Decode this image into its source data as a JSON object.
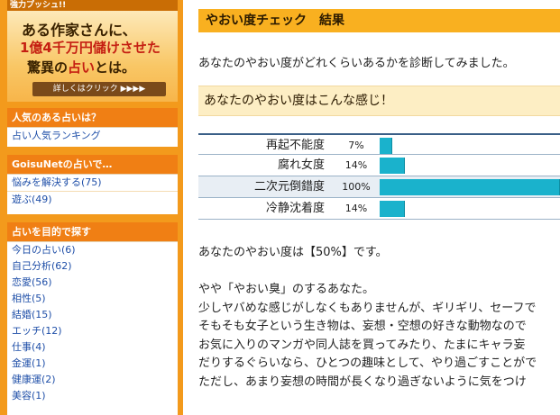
{
  "ad": {
    "header": "強力プッシュ!!",
    "line1": "ある作家さんに、",
    "line2": "1億4千万円儲けさせた",
    "line3_prefix": "驚異の",
    "line3_red": "占い",
    "line3_suffix": "とは。",
    "button": "詳しくはクリック ▶▶▶▶"
  },
  "sidebar": {
    "ranking": {
      "title": "人気のある占いは？",
      "items": [
        "占い人気ランキング"
      ]
    },
    "goisu": {
      "title": "GoisuNetの占いで…",
      "items": [
        "悩みを解決する(75)",
        "遊ぶ(49)"
      ]
    },
    "purpose": {
      "title": "占いを目的で探す",
      "items": [
        "今日の占い(6)",
        "自己分析(62)",
        "恋愛(56)",
        "相性(5)",
        "結婚(15)",
        "エッチ(12)",
        "仕事(4)",
        "金運(1)",
        "健康運(2)",
        "美容(1)"
      ]
    }
  },
  "main": {
    "header": "やおい度チェック　結果",
    "intro": "あなたのやおい度がどれくらいあるかを診断してみました。",
    "subtitle": "あなたのやおい度はこんな感じ！",
    "scores": [
      {
        "label": "再起不能度",
        "pct_text": "7%",
        "value": 7
      },
      {
        "label": "腐れ女度",
        "pct_text": "14%",
        "value": 14
      },
      {
        "label": "二次元倒錯度",
        "pct_text": "100%",
        "value": 100
      },
      {
        "label": "冷静沈着度",
        "pct_text": "14%",
        "value": 14
      }
    ],
    "result_line": "あなたのやおい度は【50%】です。",
    "desc": [
      "やや「やおい臭」のするあなた。",
      "少しヤバめな感じがしなくもありませんが、ギリギリ、セーフで",
      "そもそも女子という生き物は、妄想・空想の好きな動物なので",
      "お気に入りのマンガや同人誌を買ってみたり、たまにキャラ妄",
      "だりするぐらいなら、ひとつの趣味として、やり過ごすことがで",
      "ただし、あまり妄想の時間が長くなり過ぎないように気をつけ"
    ]
  }
}
